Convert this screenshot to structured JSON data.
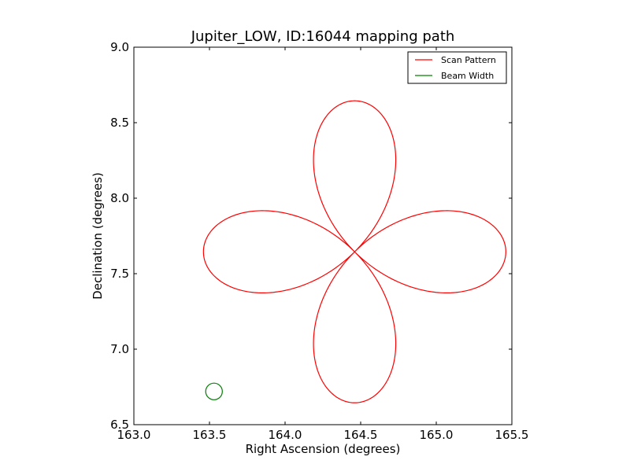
{
  "chart_data": {
    "type": "line",
    "title": "Jupiter_LOW, ID:16044 mapping path",
    "xlabel": "Right Ascension (degrees)",
    "ylabel": "Declination (degrees)",
    "xlim": [
      163.0,
      165.5
    ],
    "ylim": [
      6.5,
      9.0
    ],
    "xticks": [
      "163.0",
      "163.5",
      "164.0",
      "164.5",
      "165.0",
      "165.5"
    ],
    "yticks": [
      "6.5",
      "7.0",
      "7.5",
      "8.0",
      "8.5",
      "9.0"
    ],
    "grid": false,
    "legend_position": "top-right",
    "center": [
      164.46,
      7.645
    ],
    "series": [
      {
        "name": "Scan Pattern",
        "color": "#ff0000",
        "shape": "four-petal rose",
        "center": [
          164.46,
          7.645
        ],
        "radius": 1.0
      },
      {
        "name": "Beam Width",
        "color": "#008000",
        "shape": "circle",
        "center": [
          163.53,
          6.72
        ],
        "radius_x": 0.055,
        "radius_y": 0.055
      }
    ]
  }
}
